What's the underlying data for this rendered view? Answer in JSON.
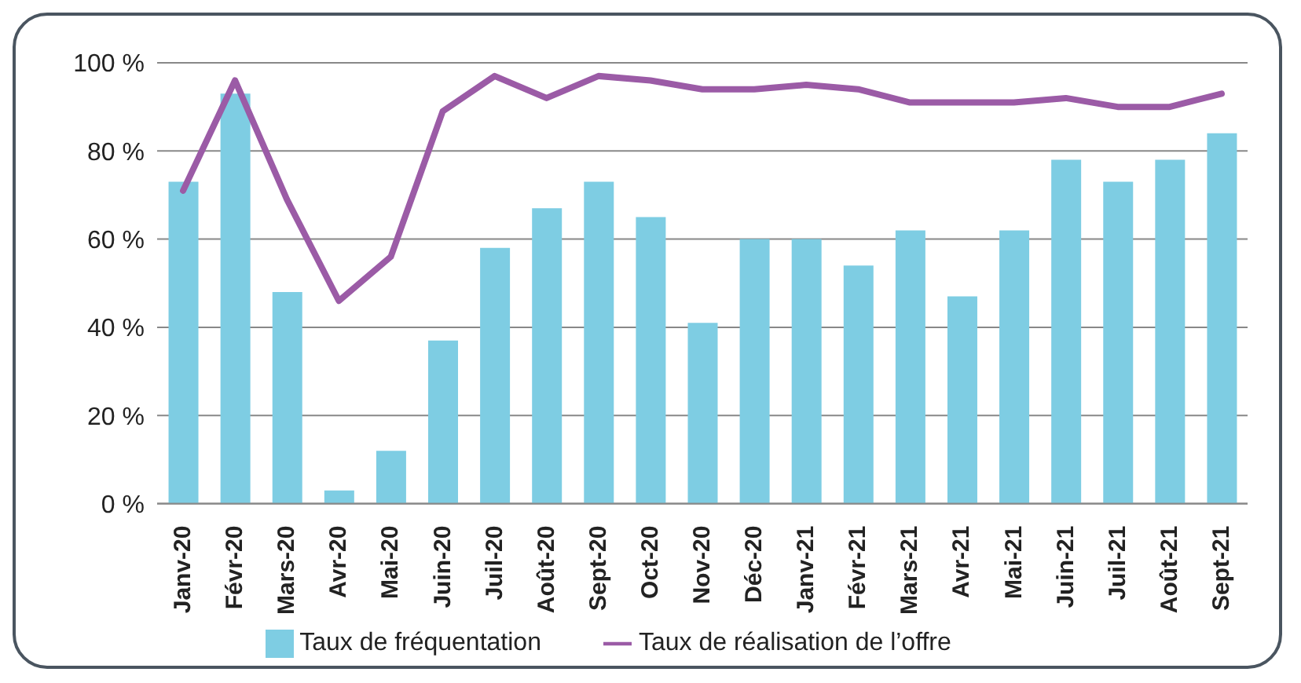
{
  "chart_data": {
    "type": "bar",
    "categories": [
      "Janv-20",
      "Févr-20",
      "Mars-20",
      "Avr-20",
      "Mai-20",
      "Juin-20",
      "Juil-20",
      "Août-20",
      "Sept-20",
      "Oct-20",
      "Nov-20",
      "Déc-20",
      "Janv-21",
      "Févr-21",
      "Mars-21",
      "Avr-21",
      "Mai-21",
      "Juin-21",
      "Juil-21",
      "Août-21",
      "Sept-21"
    ],
    "series": [
      {
        "name": "Taux de fréquentation",
        "color": "#7ecde3",
        "values": [
          73,
          93,
          48,
          3,
          12,
          37,
          58,
          67,
          73,
          65,
          41,
          60,
          60,
          54,
          62,
          47,
          62,
          78,
          73,
          78,
          84
        ]
      },
      {
        "name": "Taux de réalisation de l’offre",
        "type": "line",
        "color": "#9b5ba6",
        "values": [
          71,
          96,
          69,
          46,
          56,
          89,
          97,
          92,
          97,
          96,
          94,
          94,
          95,
          94,
          91,
          91,
          91,
          92,
          90,
          90,
          93
        ]
      }
    ],
    "ylim": [
      0,
      100
    ],
    "yticks": [
      {
        "value": 0,
        "label": "0 %"
      },
      {
        "value": 20,
        "label": "20 %"
      },
      {
        "value": 40,
        "label": "40 %"
      },
      {
        "value": 60,
        "label": "60 %"
      },
      {
        "value": 80,
        "label": "80 %"
      },
      {
        "value": 100,
        "label": "100 %"
      }
    ],
    "grid": "y",
    "legend": "bottom",
    "marker": "none",
    "line_style": "solid"
  }
}
